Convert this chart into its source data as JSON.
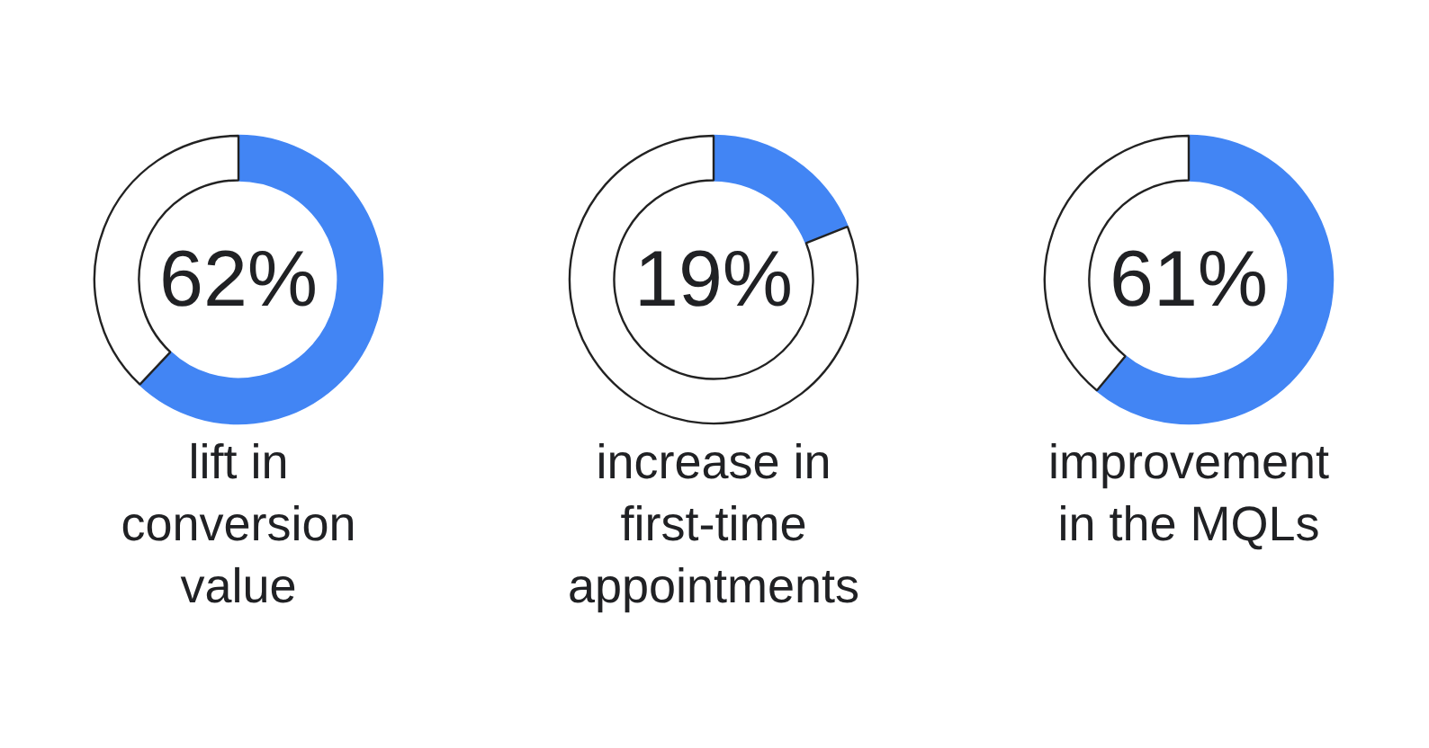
{
  "chart_data": [
    {
      "type": "donut",
      "title": "lift in\nconversion\nvalue",
      "categories": [
        null,
        null
      ],
      "values": [
        62,
        38
      ],
      "colors": [
        "#4285f4",
        "#ffffff"
      ],
      "annotations": [
        "62%"
      ]
    },
    {
      "type": "donut",
      "title": "increase in\nfirst-time\nappointments",
      "categories": [
        null,
        null
      ],
      "values": [
        19,
        81
      ],
      "colors": [
        "#4285f4",
        "#ffffff"
      ],
      "annotations": [
        "19%"
      ]
    },
    {
      "type": "donut",
      "title": "improvement\nin the MQLs",
      "categories": [
        null,
        null
      ],
      "values": [
        61,
        39
      ],
      "colors": [
        "#4285f4",
        "#ffffff"
      ],
      "annotations": [
        "61%"
      ]
    }
  ]
}
